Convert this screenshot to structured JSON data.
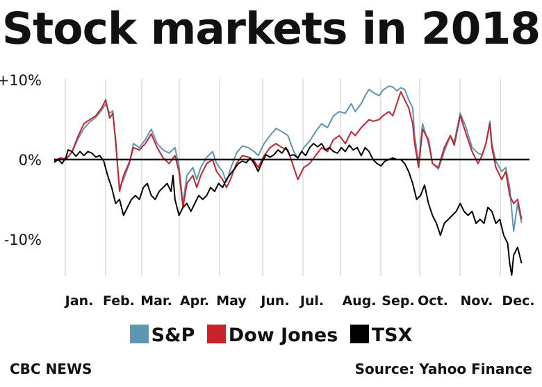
{
  "title": "Stock markets in 2018",
  "credit": "CBC NEWS",
  "source": "Source: Yahoo Finance",
  "chart_data": {
    "type": "line",
    "title": "Stock markets in 2018",
    "xlabel": "",
    "ylabel": "",
    "ylim": [
      -15,
      10
    ],
    "xlim": [
      0,
      12
    ],
    "grid": "vertical lines at month boundaries",
    "legend": "bottom",
    "y_ticks": [
      {
        "value": 10,
        "label": "+10%"
      },
      {
        "value": 0,
        "label": "0%"
      },
      {
        "value": -10,
        "label": "-10%"
      }
    ],
    "x_tick_labels": [
      "Jan.",
      "Feb.",
      "Mar.",
      "Apr.",
      "May",
      "Jun.",
      "Jul.",
      "Aug.",
      "Sep.",
      "Oct.",
      "Nov.",
      "Dec."
    ],
    "x_unit": "months since start of 2018",
    "series": [
      {
        "name": "S&P",
        "color": "#5d96b0",
        "points": [
          [
            0,
            -0.4
          ],
          [
            0.15,
            0.2
          ],
          [
            0.3,
            0.1
          ],
          [
            0.45,
            0.9
          ],
          [
            0.6,
            2.6
          ],
          [
            0.75,
            3.9
          ],
          [
            0.9,
            4.7
          ],
          [
            1.05,
            5.3
          ],
          [
            1.2,
            6.2
          ],
          [
            1.3,
            7.0
          ],
          [
            1.4,
            5.8
          ],
          [
            1.48,
            6.1
          ],
          [
            1.55,
            2.0
          ],
          [
            1.65,
            -3.5
          ],
          [
            1.75,
            -2.5
          ],
          [
            1.9,
            -0.5
          ],
          [
            2.0,
            2.0
          ],
          [
            2.15,
            1.5
          ],
          [
            2.3,
            2.5
          ],
          [
            2.45,
            3.8
          ],
          [
            2.6,
            2.0
          ],
          [
            2.75,
            1.2
          ],
          [
            2.9,
            0.8
          ],
          [
            3.05,
            1.5
          ],
          [
            3.15,
            -0.8
          ],
          [
            3.25,
            -5.5
          ],
          [
            3.35,
            -2.0
          ],
          [
            3.5,
            -1.0
          ],
          [
            3.6,
            -2.5
          ],
          [
            3.7,
            -1.0
          ],
          [
            3.85,
            0.3
          ],
          [
            4.0,
            1.0
          ],
          [
            4.1,
            -0.5
          ],
          [
            4.25,
            -1.5
          ],
          [
            4.35,
            -2.8
          ],
          [
            4.45,
            -1.2
          ],
          [
            4.6,
            0.8
          ],
          [
            4.75,
            1.7
          ],
          [
            4.9,
            1.5
          ],
          [
            5.05,
            1.0
          ],
          [
            5.15,
            0.5
          ],
          [
            5.3,
            2.0
          ],
          [
            5.45,
            3.0
          ],
          [
            5.6,
            3.9
          ],
          [
            5.75,
            3.5
          ],
          [
            5.9,
            3.0
          ],
          [
            6.05,
            1.0
          ],
          [
            6.15,
            0.2
          ],
          [
            6.3,
            1.5
          ],
          [
            6.45,
            2.3
          ],
          [
            6.6,
            3.5
          ],
          [
            6.75,
            4.5
          ],
          [
            6.9,
            4.0
          ],
          [
            7.05,
            5.5
          ],
          [
            7.2,
            6.0
          ],
          [
            7.35,
            5.8
          ],
          [
            7.5,
            7.0
          ],
          [
            7.6,
            6.0
          ],
          [
            7.75,
            7.0
          ],
          [
            7.85,
            8.0
          ],
          [
            7.95,
            8.8
          ],
          [
            8.05,
            8.4
          ],
          [
            8.2,
            8.0
          ],
          [
            8.3,
            8.7
          ],
          [
            8.45,
            9.2
          ],
          [
            8.55,
            9.1
          ],
          [
            8.65,
            8.6
          ],
          [
            8.75,
            9.0
          ],
          [
            8.85,
            8.8
          ],
          [
            8.95,
            7.5
          ],
          [
            9.05,
            6.5
          ],
          [
            9.1,
            3.0
          ],
          [
            9.2,
            -0.5
          ],
          [
            9.3,
            4.5
          ],
          [
            9.45,
            2.0
          ],
          [
            9.55,
            -0.5
          ],
          [
            9.7,
            -1.2
          ],
          [
            9.85,
            1.0
          ],
          [
            10.0,
            3.0
          ],
          [
            10.1,
            2.2
          ],
          [
            10.25,
            5.8
          ],
          [
            10.4,
            4.0
          ],
          [
            10.55,
            1.5
          ],
          [
            10.7,
            0.8
          ],
          [
            10.8,
            0.6
          ],
          [
            10.9,
            2.0
          ],
          [
            11.0,
            4.8
          ],
          [
            11.05,
            2.0
          ],
          [
            11.15,
            -0.2
          ],
          [
            11.3,
            -1.5
          ],
          [
            11.4,
            -1.0
          ],
          [
            11.5,
            -3.5
          ],
          [
            11.6,
            -9.0
          ],
          [
            11.7,
            -5.5
          ],
          [
            11.8,
            -7.9
          ]
        ]
      },
      {
        "name": "Dow Jones",
        "color": "#c8232c",
        "points": [
          [
            0,
            -0.2
          ],
          [
            0.15,
            0.2
          ],
          [
            0.3,
            0.0
          ],
          [
            0.45,
            1.0
          ],
          [
            0.6,
            2.9
          ],
          [
            0.75,
            4.5
          ],
          [
            0.9,
            5.0
          ],
          [
            1.05,
            5.5
          ],
          [
            1.2,
            6.5
          ],
          [
            1.3,
            7.5
          ],
          [
            1.4,
            5.2
          ],
          [
            1.48,
            5.8
          ],
          [
            1.55,
            2.5
          ],
          [
            1.65,
            -4.0
          ],
          [
            1.75,
            -2.0
          ],
          [
            1.9,
            -0.3
          ],
          [
            2.0,
            1.5
          ],
          [
            2.15,
            1.2
          ],
          [
            2.3,
            2.0
          ],
          [
            2.45,
            3.2
          ],
          [
            2.6,
            1.5
          ],
          [
            2.75,
            0.2
          ],
          [
            2.9,
            -0.5
          ],
          [
            3.05,
            0.5
          ],
          [
            3.15,
            -1.5
          ],
          [
            3.25,
            -6.0
          ],
          [
            3.35,
            -3.0
          ],
          [
            3.5,
            -2.0
          ],
          [
            3.6,
            -3.5
          ],
          [
            3.7,
            -2.0
          ],
          [
            3.85,
            -0.5
          ],
          [
            4.0,
            0.0
          ],
          [
            4.1,
            -1.5
          ],
          [
            4.25,
            -2.5
          ],
          [
            4.35,
            -3.5
          ],
          [
            4.45,
            -2.5
          ],
          [
            4.6,
            -0.5
          ],
          [
            4.75,
            0.5
          ],
          [
            4.9,
            0.3
          ],
          [
            5.05,
            -0.2
          ],
          [
            5.15,
            -1.0
          ],
          [
            5.3,
            0.5
          ],
          [
            5.45,
            1.5
          ],
          [
            5.6,
            2.0
          ],
          [
            5.75,
            1.5
          ],
          [
            5.9,
            1.2
          ],
          [
            6.05,
            -1.0
          ],
          [
            6.15,
            -2.5
          ],
          [
            6.3,
            -1.0
          ],
          [
            6.45,
            -0.5
          ],
          [
            6.6,
            0.5
          ],
          [
            6.75,
            1.5
          ],
          [
            6.9,
            1.0
          ],
          [
            7.05,
            2.5
          ],
          [
            7.2,
            3.0
          ],
          [
            7.35,
            2.0
          ],
          [
            7.5,
            3.5
          ],
          [
            7.6,
            3.0
          ],
          [
            7.75,
            4.0
          ],
          [
            7.85,
            4.5
          ],
          [
            7.95,
            5.0
          ],
          [
            8.05,
            4.8
          ],
          [
            8.2,
            5.0
          ],
          [
            8.3,
            5.5
          ],
          [
            8.45,
            6.0
          ],
          [
            8.55,
            5.5
          ],
          [
            8.65,
            7.0
          ],
          [
            8.75,
            8.5
          ],
          [
            8.85,
            7.5
          ],
          [
            8.95,
            6.5
          ],
          [
            9.05,
            4.5
          ],
          [
            9.1,
            2.0
          ],
          [
            9.2,
            -1.0
          ],
          [
            9.3,
            3.8
          ],
          [
            9.45,
            2.5
          ],
          [
            9.55,
            -0.5
          ],
          [
            9.7,
            -1.0
          ],
          [
            9.85,
            1.5
          ],
          [
            10.0,
            3.0
          ],
          [
            10.1,
            1.8
          ],
          [
            10.25,
            5.5
          ],
          [
            10.4,
            3.2
          ],
          [
            10.55,
            1.0
          ],
          [
            10.7,
            -0.5
          ],
          [
            10.8,
            0.5
          ],
          [
            10.9,
            2.0
          ],
          [
            11.0,
            4.5
          ],
          [
            11.05,
            1.5
          ],
          [
            11.15,
            -1.0
          ],
          [
            11.3,
            -2.5
          ],
          [
            11.4,
            -1.5
          ],
          [
            11.5,
            -4.5
          ],
          [
            11.6,
            -5.5
          ],
          [
            11.7,
            -5.0
          ],
          [
            11.8,
            -7.5
          ]
        ]
      },
      {
        "name": "TSX",
        "color": "#000000",
        "points": [
          [
            0,
            -0.3
          ],
          [
            0.1,
            0.0
          ],
          [
            0.2,
            -0.5
          ],
          [
            0.3,
            0.3
          ],
          [
            0.35,
            1.2
          ],
          [
            0.45,
            1.0
          ],
          [
            0.55,
            0.4
          ],
          [
            0.65,
            1.0
          ],
          [
            0.75,
            0.5
          ],
          [
            0.85,
            1.0
          ],
          [
            0.95,
            0.8
          ],
          [
            1.05,
            0.3
          ],
          [
            1.15,
            0.5
          ],
          [
            1.25,
            -0.2
          ],
          [
            1.35,
            -2.0
          ],
          [
            1.45,
            -3.5
          ],
          [
            1.55,
            -5.5
          ],
          [
            1.65,
            -5.0
          ],
          [
            1.75,
            -7.0
          ],
          [
            1.85,
            -6.0
          ],
          [
            1.95,
            -5.0
          ],
          [
            2.05,
            -4.5
          ],
          [
            2.15,
            -5.0
          ],
          [
            2.25,
            -3.5
          ],
          [
            2.35,
            -3.0
          ],
          [
            2.45,
            -4.5
          ],
          [
            2.55,
            -5.0
          ],
          [
            2.65,
            -4.0
          ],
          [
            2.75,
            -3.5
          ],
          [
            2.85,
            -3.0
          ],
          [
            2.95,
            -4.0
          ],
          [
            3.0,
            -2.0
          ],
          [
            3.05,
            -5.0
          ],
          [
            3.15,
            -7.0
          ],
          [
            3.25,
            -6.0
          ],
          [
            3.35,
            -5.5
          ],
          [
            3.45,
            -6.5
          ],
          [
            3.55,
            -5.5
          ],
          [
            3.65,
            -4.5
          ],
          [
            3.75,
            -5.0
          ],
          [
            3.85,
            -4.5
          ],
          [
            3.95,
            -3.5
          ],
          [
            4.05,
            -4.0
          ],
          [
            4.15,
            -3.0
          ],
          [
            4.25,
            -3.5
          ],
          [
            4.35,
            -2.5
          ],
          [
            4.45,
            -1.8
          ],
          [
            4.55,
            -1.2
          ],
          [
            4.65,
            -0.5
          ],
          [
            4.75,
            -0.2
          ],
          [
            4.85,
            -0.4
          ],
          [
            4.95,
            0.2
          ],
          [
            5.05,
            -0.5
          ],
          [
            5.15,
            -1.5
          ],
          [
            5.25,
            -0.3
          ],
          [
            5.35,
            0.6
          ],
          [
            5.45,
            0.3
          ],
          [
            5.55,
            0.6
          ],
          [
            5.65,
            1.2
          ],
          [
            5.75,
            0.8
          ],
          [
            5.85,
            1.5
          ],
          [
            5.95,
            0.5
          ],
          [
            6.05,
            0.6
          ],
          [
            6.15,
            0.2
          ],
          [
            6.25,
            1.0
          ],
          [
            6.35,
            0.5
          ],
          [
            6.45,
            1.5
          ],
          [
            6.55,
            2.0
          ],
          [
            6.65,
            1.6
          ],
          [
            6.75,
            2.0
          ],
          [
            6.85,
            1.2
          ],
          [
            6.95,
            1.5
          ],
          [
            7.05,
            1.0
          ],
          [
            7.15,
            0.8
          ],
          [
            7.25,
            1.5
          ],
          [
            7.35,
            1.0
          ],
          [
            7.45,
            1.8
          ],
          [
            7.55,
            1.2
          ],
          [
            7.65,
            1.5
          ],
          [
            7.75,
            0.5
          ],
          [
            7.85,
            1.5
          ],
          [
            7.95,
            1.0
          ],
          [
            8.05,
            0.0
          ],
          [
            8.15,
            -0.5
          ],
          [
            8.25,
            -0.8
          ],
          [
            8.35,
            -0.2
          ],
          [
            8.45,
            0.0
          ],
          [
            8.55,
            0.2
          ],
          [
            8.65,
            0.0
          ],
          [
            8.75,
            0.0
          ],
          [
            8.85,
            -0.5
          ],
          [
            8.95,
            -1.5
          ],
          [
            9.05,
            -3.0
          ],
          [
            9.15,
            -5.0
          ],
          [
            9.25,
            -4.5
          ],
          [
            9.35,
            -3.2
          ],
          [
            9.45,
            -5.5
          ],
          [
            9.55,
            -7.0
          ],
          [
            9.65,
            -8.0
          ],
          [
            9.75,
            -9.5
          ],
          [
            9.85,
            -8.0
          ],
          [
            9.95,
            -7.5
          ],
          [
            10.05,
            -7.0
          ],
          [
            10.15,
            -6.5
          ],
          [
            10.25,
            -5.5
          ],
          [
            10.35,
            -6.5
          ],
          [
            10.45,
            -7.0
          ],
          [
            10.55,
            -6.5
          ],
          [
            10.65,
            -8.0
          ],
          [
            10.75,
            -7.5
          ],
          [
            10.85,
            -8.0
          ],
          [
            10.95,
            -6.0
          ],
          [
            11.05,
            -6.5
          ],
          [
            11.15,
            -8.0
          ],
          [
            11.25,
            -7.5
          ],
          [
            11.35,
            -9.5
          ],
          [
            11.45,
            -10.5
          ],
          [
            11.5,
            -13.0
          ],
          [
            11.55,
            -14.5
          ],
          [
            11.6,
            -12.0
          ],
          [
            11.7,
            -11.0
          ],
          [
            11.8,
            -13.0
          ]
        ]
      }
    ]
  }
}
